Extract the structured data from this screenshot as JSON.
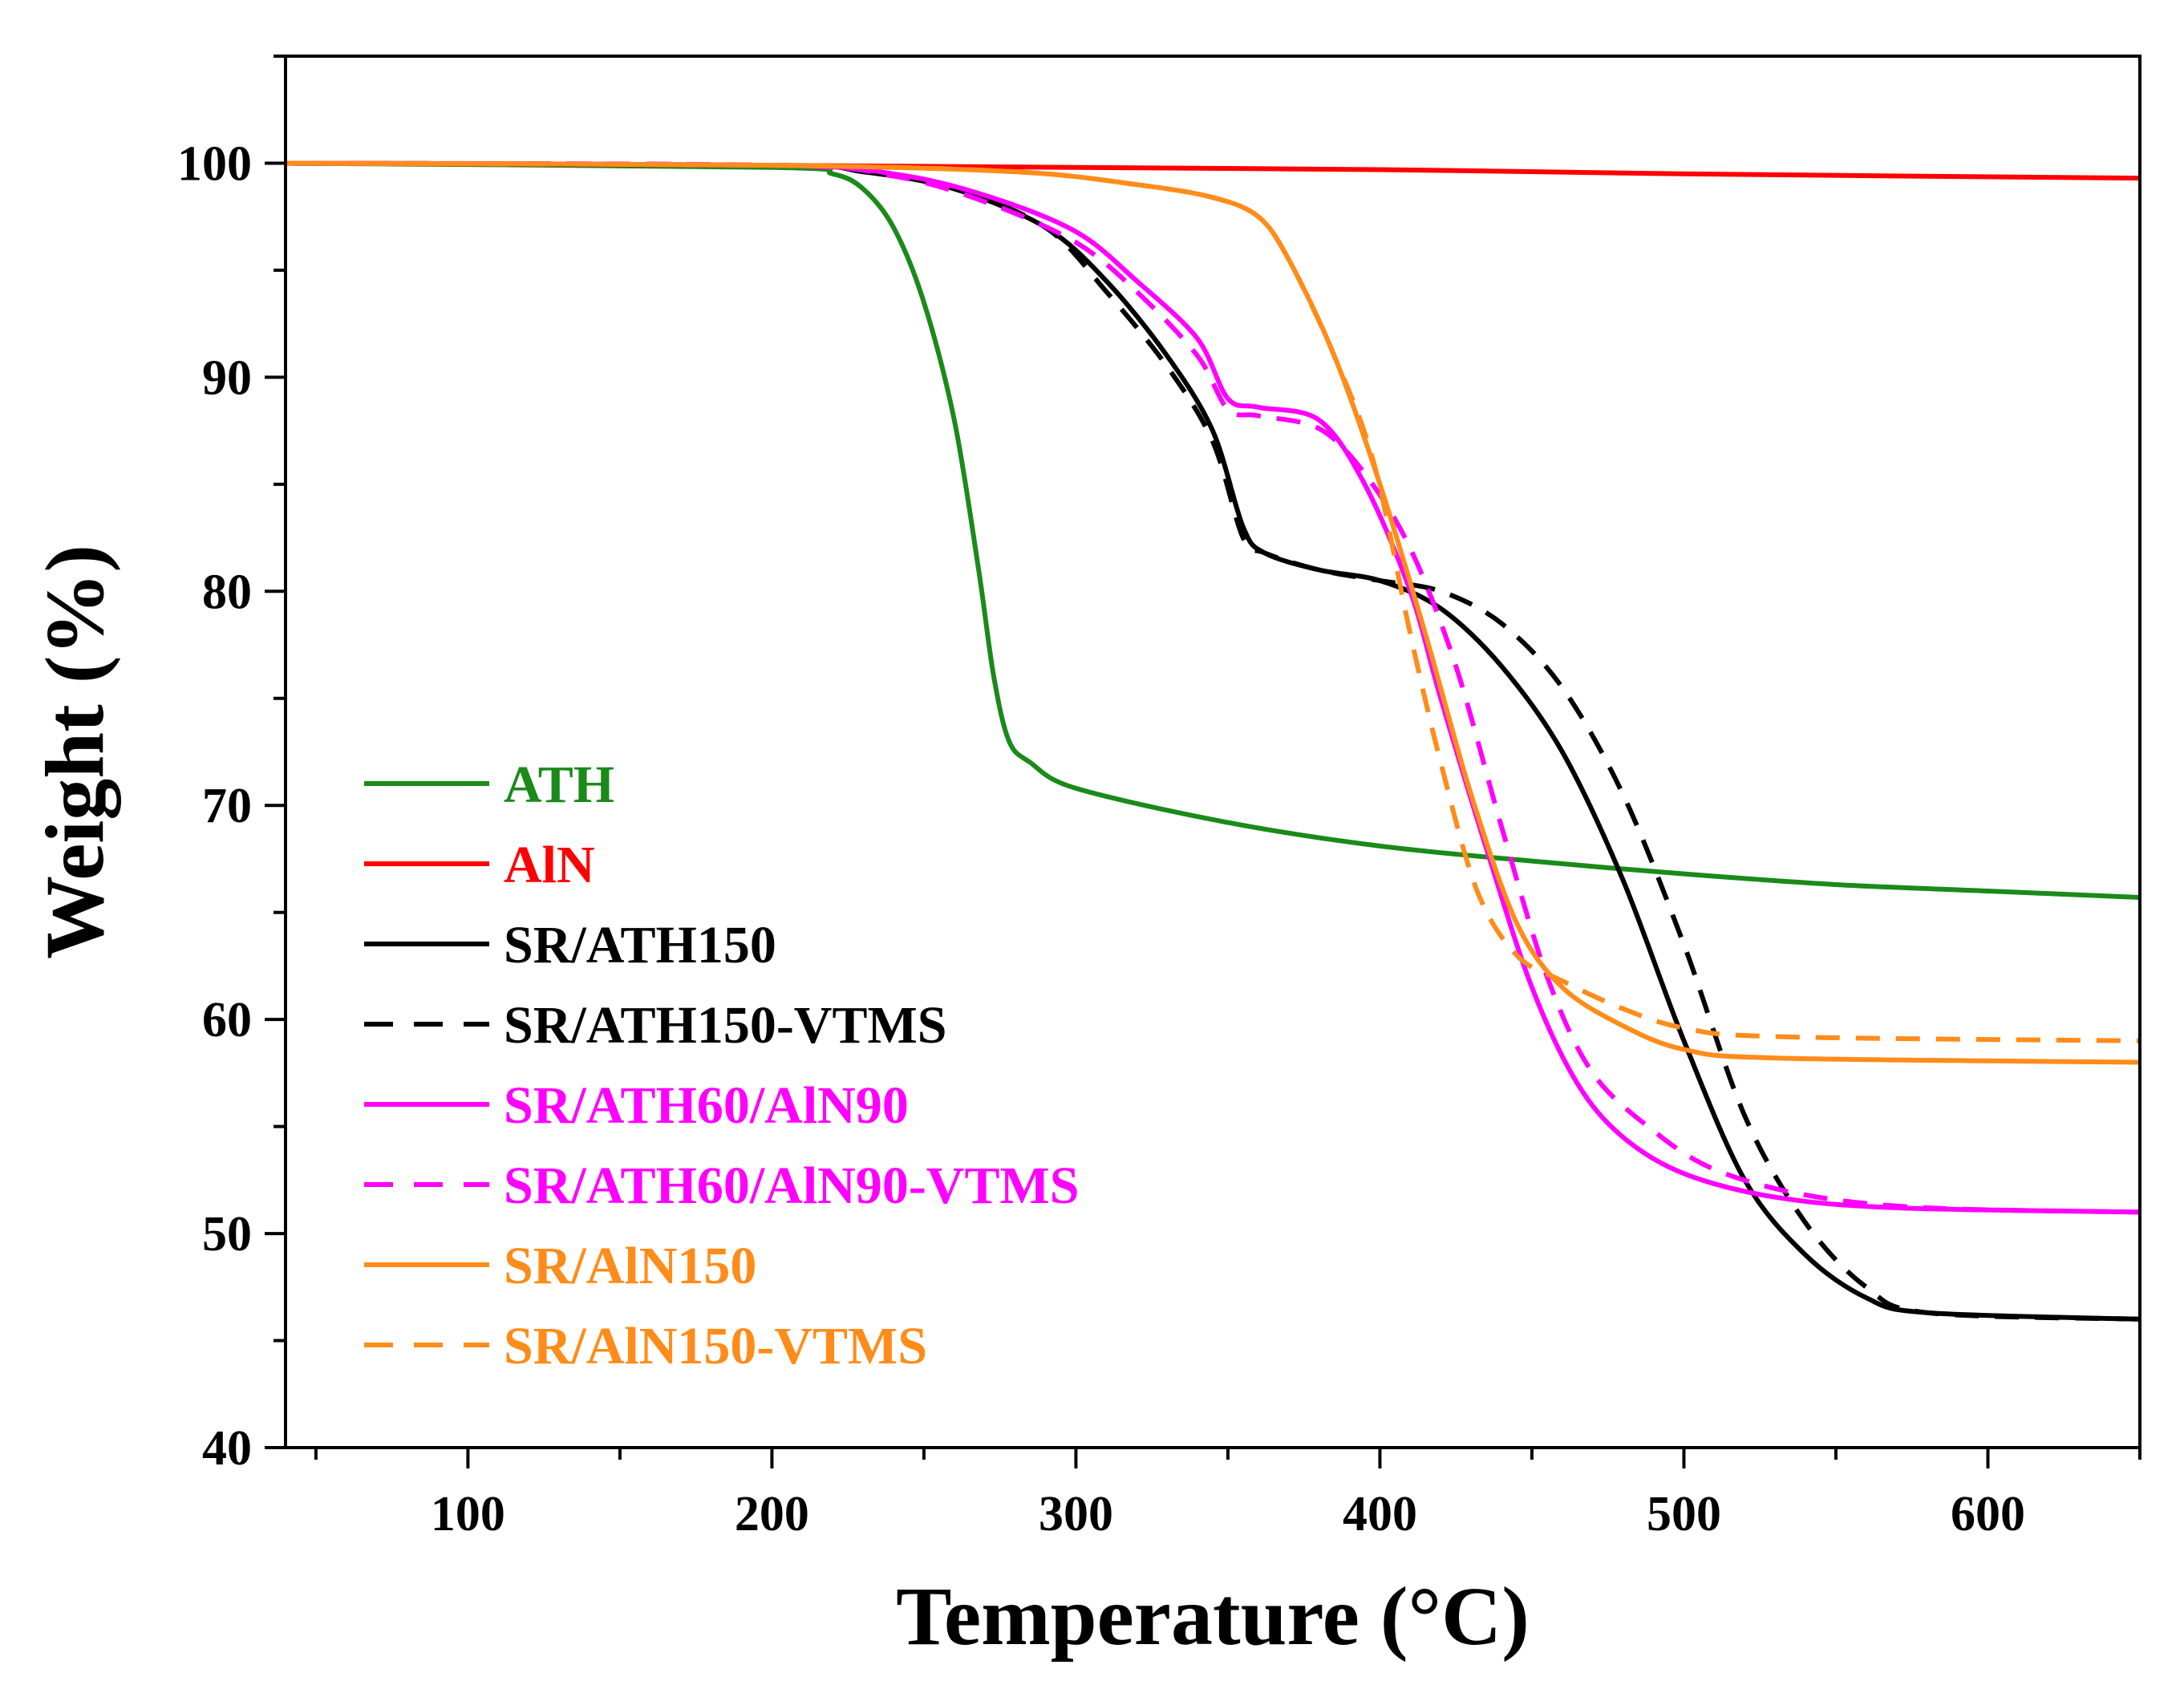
{
  "chart_data": {
    "type": "line",
    "xlabel": "Temperature (°C)",
    "ylabel": "Weight (%)",
    "xlim": [
      40,
      650
    ],
    "ylim": [
      40,
      105
    ],
    "x_ticks": [
      100,
      200,
      300,
      400,
      500,
      600
    ],
    "y_ticks": [
      40,
      50,
      60,
      70,
      80,
      90,
      100
    ],
    "x_minor_step": 50,
    "y_minor_step": 5,
    "grid": false,
    "legend_position": "bottom-left",
    "series": [
      {
        "name": "ATH",
        "color": "#1a8a1a",
        "dash": false,
        "points": [
          [
            40,
            100
          ],
          [
            200,
            99.8
          ],
          [
            220,
            99.5
          ],
          [
            230,
            98.8
          ],
          [
            240,
            97
          ],
          [
            250,
            93.5
          ],
          [
            260,
            88
          ],
          [
            268,
            81
          ],
          [
            273,
            76
          ],
          [
            278,
            73
          ],
          [
            285,
            72
          ],
          [
            300,
            70.8
          ],
          [
            350,
            69.2
          ],
          [
            400,
            68.1
          ],
          [
            450,
            67.4
          ],
          [
            500,
            66.8
          ],
          [
            550,
            66.3
          ],
          [
            600,
            66
          ],
          [
            650,
            65.7
          ]
        ]
      },
      {
        "name": "AlN",
        "color": "#ff0000",
        "dash": false,
        "points": [
          [
            40,
            100
          ],
          [
            200,
            99.9
          ],
          [
            300,
            99.8
          ],
          [
            400,
            99.7
          ],
          [
            500,
            99.5
          ],
          [
            650,
            99.3
          ]
        ]
      },
      {
        "name": "SR/ATH150",
        "color": "#000000",
        "dash": false,
        "points": [
          [
            40,
            100
          ],
          [
            200,
            99.9
          ],
          [
            230,
            99.6
          ],
          [
            260,
            98.8
          ],
          [
            290,
            97
          ],
          [
            310,
            94.5
          ],
          [
            330,
            91
          ],
          [
            345,
            87.5
          ],
          [
            355,
            83
          ],
          [
            362,
            81.8
          ],
          [
            380,
            81
          ],
          [
            400,
            80.5
          ],
          [
            420,
            79.2
          ],
          [
            440,
            76.5
          ],
          [
            460,
            72.5
          ],
          [
            480,
            66.5
          ],
          [
            500,
            59
          ],
          [
            520,
            52.5
          ],
          [
            540,
            49
          ],
          [
            560,
            47
          ],
          [
            580,
            46.3
          ],
          [
            650,
            46
          ]
        ]
      },
      {
        "name": "SR/ATH150-VTMS",
        "color": "#000000",
        "dash": true,
        "points": [
          [
            40,
            100
          ],
          [
            200,
            99.9
          ],
          [
            230,
            99.6
          ],
          [
            260,
            98.8
          ],
          [
            290,
            97
          ],
          [
            310,
            94
          ],
          [
            330,
            90.5
          ],
          [
            345,
            87
          ],
          [
            355,
            82.5
          ],
          [
            362,
            81.8
          ],
          [
            380,
            81
          ],
          [
            400,
            80.5
          ],
          [
            420,
            80
          ],
          [
            440,
            78.5
          ],
          [
            460,
            75.5
          ],
          [
            480,
            70.5
          ],
          [
            500,
            63.5
          ],
          [
            520,
            55.5
          ],
          [
            540,
            50.5
          ],
          [
            560,
            47.5
          ],
          [
            580,
            46.3
          ],
          [
            650,
            46
          ]
        ]
      },
      {
        "name": "SR/ATH60/AlN90",
        "color": "#ff00ff",
        "dash": false,
        "points": [
          [
            40,
            100
          ],
          [
            200,
            99.9
          ],
          [
            240,
            99.5
          ],
          [
            270,
            98.5
          ],
          [
            300,
            96.8
          ],
          [
            320,
            94.5
          ],
          [
            340,
            91.8
          ],
          [
            350,
            89
          ],
          [
            360,
            88.6
          ],
          [
            380,
            88
          ],
          [
            395,
            85
          ],
          [
            410,
            80
          ],
          [
            420,
            75
          ],
          [
            435,
            68
          ],
          [
            450,
            61.5
          ],
          [
            465,
            57
          ],
          [
            480,
            54.5
          ],
          [
            500,
            52.8
          ],
          [
            530,
            51.7
          ],
          [
            570,
            51.2
          ],
          [
            650,
            51
          ]
        ]
      },
      {
        "name": "SR/ATH60/AlN90-VTMS",
        "color": "#ff00ff",
        "dash": true,
        "points": [
          [
            40,
            100
          ],
          [
            200,
            99.9
          ],
          [
            240,
            99.4
          ],
          [
            270,
            98.2
          ],
          [
            300,
            96.3
          ],
          [
            320,
            94
          ],
          [
            340,
            91
          ],
          [
            350,
            88.5
          ],
          [
            360,
            88.2
          ],
          [
            380,
            87.6
          ],
          [
            395,
            85.5
          ],
          [
            410,
            82
          ],
          [
            425,
            76.5
          ],
          [
            440,
            69
          ],
          [
            455,
            62
          ],
          [
            470,
            57.5
          ],
          [
            490,
            54.8
          ],
          [
            510,
            53
          ],
          [
            540,
            51.8
          ],
          [
            580,
            51.2
          ],
          [
            650,
            51
          ]
        ]
      },
      {
        "name": "SR/AlN150",
        "color": "#ff8c1a",
        "dash": false,
        "points": [
          [
            40,
            100
          ],
          [
            200,
            99.9
          ],
          [
            280,
            99.6
          ],
          [
            320,
            99
          ],
          [
            345,
            98.4
          ],
          [
            360,
            97.5
          ],
          [
            370,
            95.5
          ],
          [
            385,
            91
          ],
          [
            400,
            85
          ],
          [
            415,
            78
          ],
          [
            430,
            70.5
          ],
          [
            445,
            64.5
          ],
          [
            460,
            61.5
          ],
          [
            480,
            59.7
          ],
          [
            500,
            58.6
          ],
          [
            530,
            58.2
          ],
          [
            650,
            58
          ]
        ]
      },
      {
        "name": "SR/AlN150-VTMS",
        "color": "#ff8c1a",
        "dash": true,
        "points": [
          [
            40,
            100
          ],
          [
            200,
            99.9
          ],
          [
            280,
            99.6
          ],
          [
            320,
            99
          ],
          [
            345,
            98.4
          ],
          [
            360,
            97.5
          ],
          [
            370,
            95.5
          ],
          [
            385,
            91
          ],
          [
            398,
            86
          ],
          [
            410,
            78
          ],
          [
            420,
            72
          ],
          [
            432,
            66
          ],
          [
            445,
            63
          ],
          [
            460,
            61.8
          ],
          [
            480,
            60.5
          ],
          [
            500,
            59.6
          ],
          [
            530,
            59.2
          ],
          [
            650,
            59
          ]
        ]
      }
    ]
  }
}
